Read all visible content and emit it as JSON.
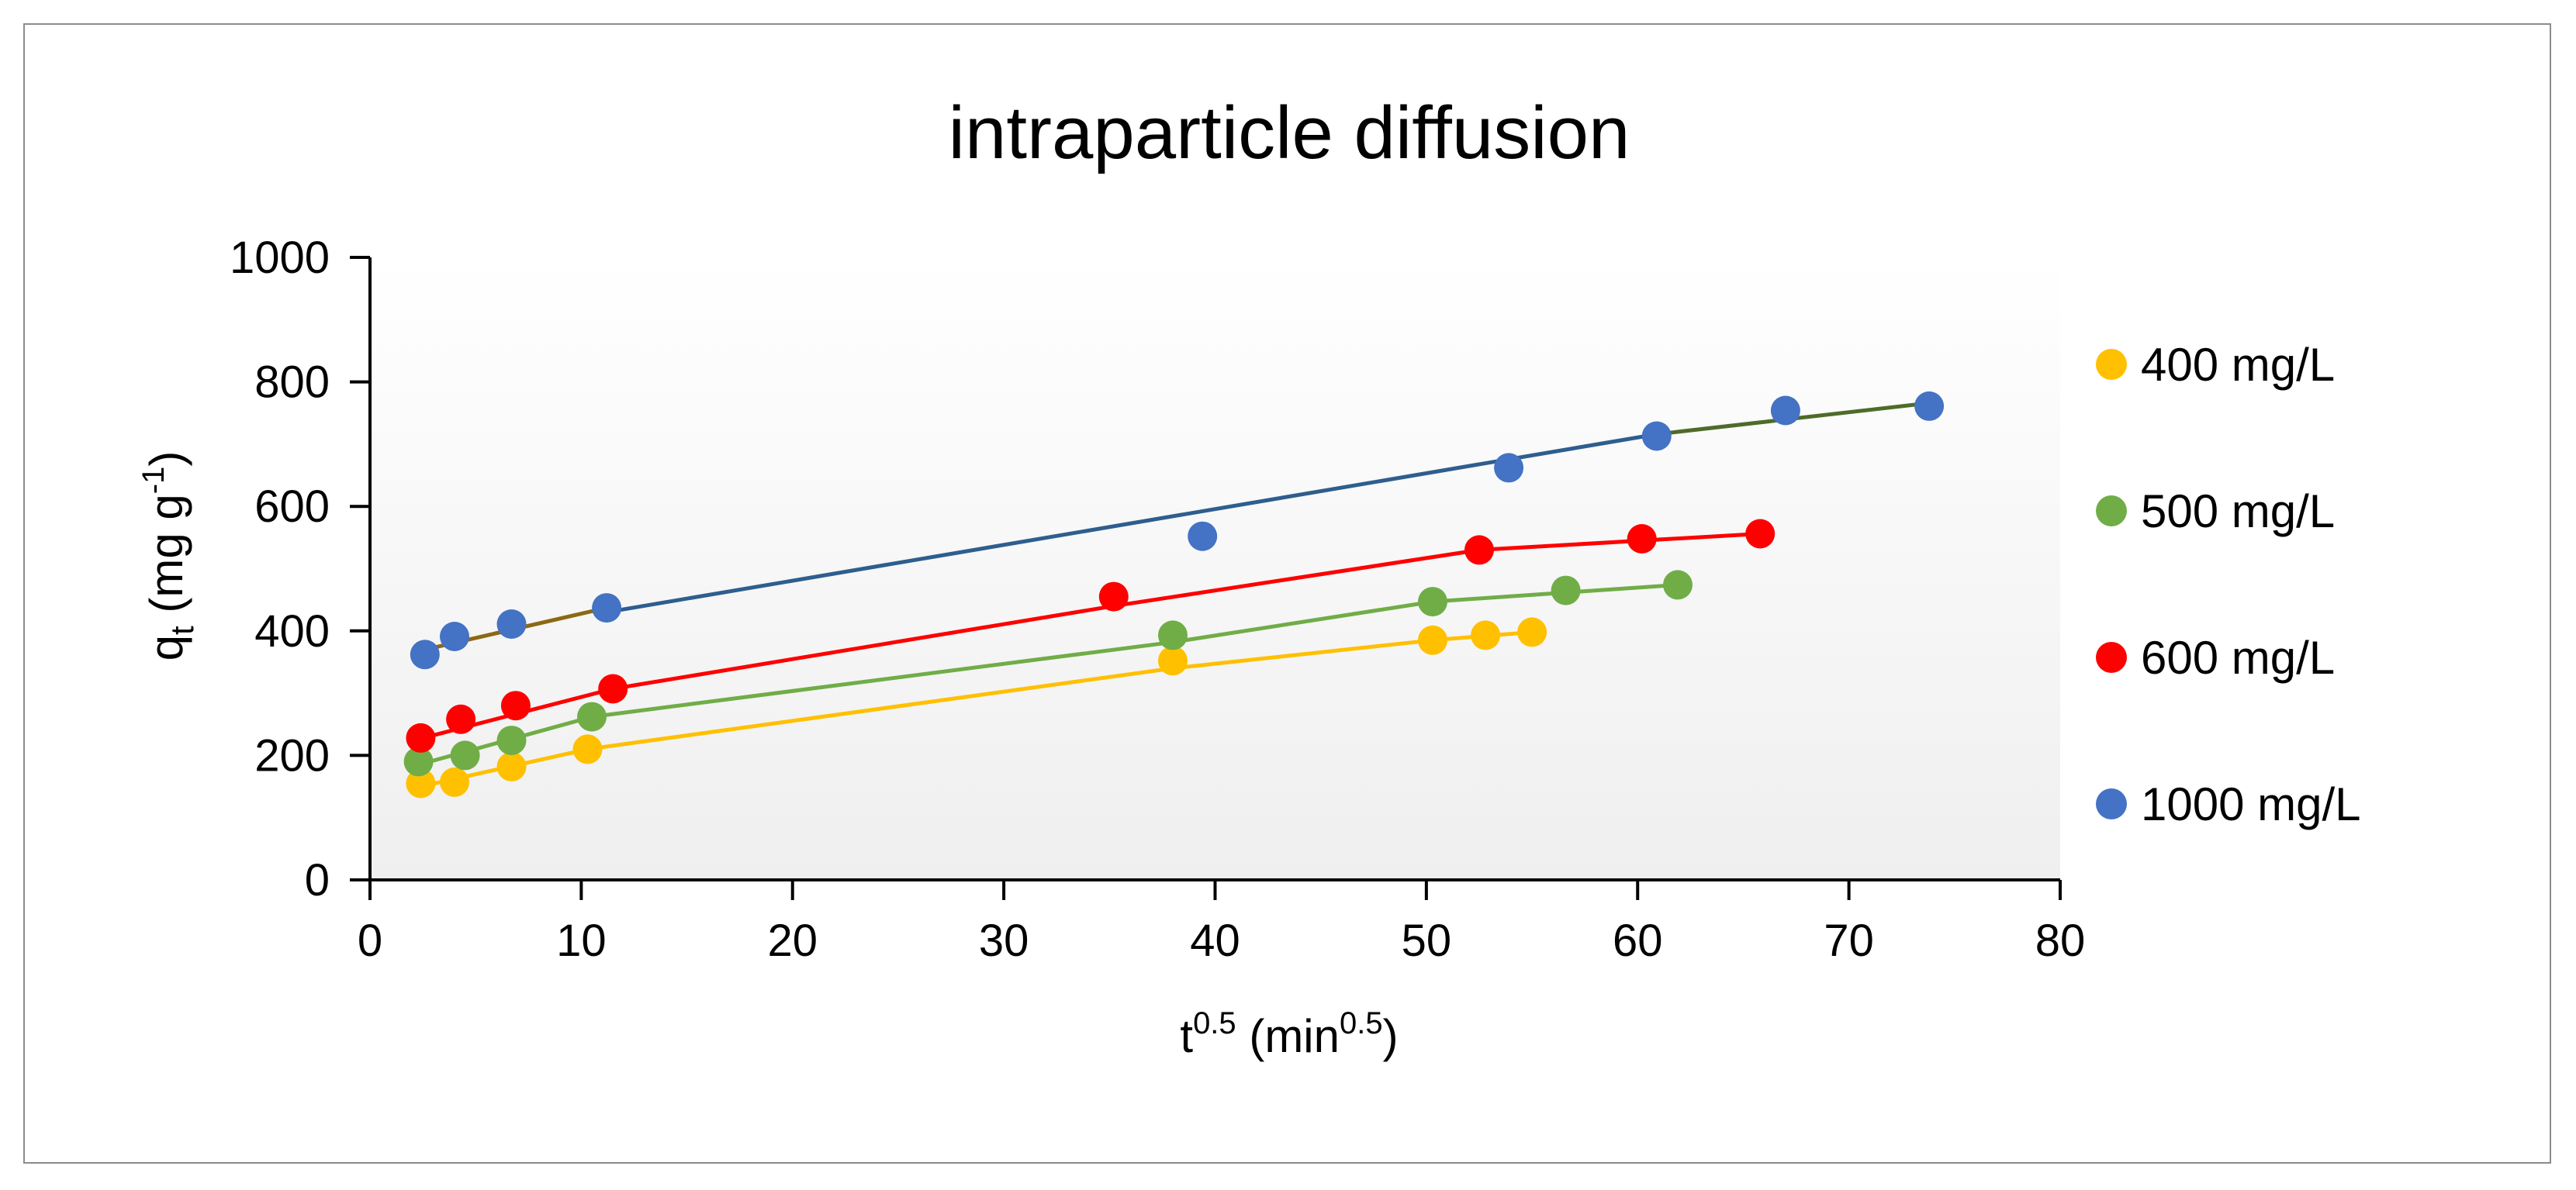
{
  "chart_data": {
    "type": "scatter",
    "title": "intraparticle diffusion",
    "xlabel": {
      "base": "t",
      "sup": "0.5",
      "rest": " (min",
      "sup2": "0.5",
      "end": ")"
    },
    "ylabel": {
      "base": "q",
      "sub": "t",
      "rest": " (mg g",
      "sup": "-1",
      "end": ")"
    },
    "xlim": [
      0,
      80
    ],
    "ylim": [
      0,
      1000
    ],
    "x_ticks": [
      "0",
      "10",
      "20",
      "30",
      "40",
      "50",
      "60",
      "70",
      "80"
    ],
    "y_ticks": [
      "0",
      "200",
      "400",
      "600",
      "800",
      "1000"
    ],
    "grid": false,
    "legend_position": "right",
    "series": [
      {
        "name": "400 mg/L",
        "color": "#FFC000",
        "points": [
          [
            2.4,
            155
          ],
          [
            4.0,
            157
          ],
          [
            6.7,
            182
          ],
          [
            10.3,
            210
          ],
          [
            38.0,
            352
          ],
          [
            50.3,
            385
          ],
          [
            52.8,
            393
          ],
          [
            55.0,
            398
          ]
        ],
        "fit_segments": [
          {
            "color": "#FFC000",
            "points": [
              [
                2.4,
                150
              ],
              [
                10.3,
                210
              ]
            ]
          },
          {
            "color": "#FFC000",
            "points": [
              [
                10.3,
                210
              ],
              [
                38.0,
                340
              ],
              [
                50.3,
                385
              ],
              [
                55.0,
                398
              ]
            ]
          }
        ]
      },
      {
        "name": "500 mg/L",
        "color": "#70AD47",
        "points": [
          [
            2.3,
            190
          ],
          [
            4.5,
            200
          ],
          [
            6.7,
            224
          ],
          [
            10.5,
            262
          ],
          [
            38.0,
            393
          ],
          [
            50.3,
            447
          ],
          [
            56.6,
            465
          ],
          [
            61.9,
            474
          ]
        ],
        "fit_segments": [
          {
            "color": "#70AD47",
            "points": [
              [
                2.3,
                185
              ],
              [
                10.5,
                262
              ]
            ]
          },
          {
            "color": "#70AD47",
            "points": [
              [
                10.5,
                262
              ],
              [
                38.0,
                382
              ],
              [
                50.3,
                447
              ],
              [
                61.9,
                474
              ]
            ]
          }
        ]
      },
      {
        "name": "600 mg/L",
        "color": "#FF0000",
        "points": [
          [
            2.4,
            228
          ],
          [
            4.3,
            258
          ],
          [
            6.9,
            280
          ],
          [
            11.5,
            307
          ],
          [
            35.2,
            455
          ],
          [
            52.5,
            530
          ],
          [
            60.2,
            548
          ],
          [
            65.8,
            556
          ]
        ],
        "fit_segments": [
          {
            "color": "#FF0000",
            "points": [
              [
                2.4,
                227
              ],
              [
                11.5,
                307
              ]
            ]
          },
          {
            "color": "#FF0000",
            "points": [
              [
                11.5,
                307
              ],
              [
                35.2,
                440
              ],
              [
                52.5,
                530
              ],
              [
                65.8,
                556
              ]
            ]
          }
        ]
      },
      {
        "name": "1000 mg/L",
        "color": "#4472C4",
        "points": [
          [
            2.6,
            362
          ],
          [
            4.0,
            391
          ],
          [
            6.7,
            411
          ],
          [
            11.2,
            437
          ],
          [
            39.4,
            552
          ],
          [
            53.9,
            662
          ],
          [
            60.9,
            713
          ],
          [
            67.0,
            754
          ],
          [
            73.8,
            761
          ]
        ],
        "fit_segments": [
          {
            "color": "#8B6914",
            "points": [
              [
                2.6,
                370
              ],
              [
                11.2,
                437
              ]
            ]
          },
          {
            "color": "#2E5E8E",
            "points": [
              [
                11.2,
                430
              ],
              [
                60.9,
                716
              ]
            ]
          },
          {
            "color": "#4E6B2A",
            "points": [
              [
                60.9,
                716
              ],
              [
                73.8,
                766
              ]
            ]
          }
        ]
      }
    ]
  }
}
